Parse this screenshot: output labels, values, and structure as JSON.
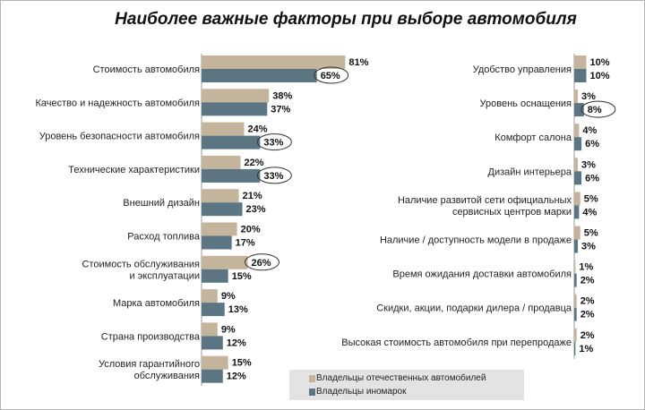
{
  "chart_data": {
    "type": "bar",
    "orientation": "horizontal",
    "title": "Наиболее важные факторы при выборе автомобиля",
    "series_names": [
      "Владельцы отечественных автомобилей",
      "Владельцы иномарок"
    ],
    "colors": {
      "domestic": "#c4b49c",
      "foreign": "#5b7583",
      "highlight_ring": "#333333"
    },
    "unit": "%",
    "panels": [
      {
        "side": "left",
        "categories": [
          "Стоимость автомобиля",
          "Качество и надежность автомобиля",
          "Уровень безопасности автомобиля",
          "Технические характеристики",
          "Внешний дизайн",
          "Расход топлива",
          "Стоимость обслуживания\nи эксплуатации",
          "Марка автомобиля",
          "Страна производства",
          "Условия гарантийного\nобслуживания"
        ],
        "domestic": [
          81,
          38,
          24,
          22,
          21,
          20,
          26,
          9,
          9,
          15
        ],
        "foreign": [
          65,
          37,
          33,
          33,
          23,
          17,
          15,
          13,
          12,
          12
        ],
        "highlighted": [
          {
            "category_index": 0,
            "series": "foreign"
          },
          {
            "category_index": 2,
            "series": "foreign"
          },
          {
            "category_index": 3,
            "series": "foreign"
          },
          {
            "category_index": 6,
            "series": "domestic"
          }
        ]
      },
      {
        "side": "right",
        "categories": [
          "Удобство управления",
          "Уровень оснащения",
          "Комфорт салона",
          "Дизайн интерьера",
          "Наличие развитой сети официальных\nсервисных центров марки",
          "Наличие / доступность модели в продаже",
          "Время ожидания доставки автомобиля",
          "Скидки, акции, подарки дилера / продавца",
          "Высокая стоимость автомобиля при перепродаже"
        ],
        "domestic": [
          10,
          3,
          4,
          3,
          5,
          5,
          1,
          2,
          2
        ],
        "foreign": [
          10,
          8,
          6,
          6,
          4,
          3,
          2,
          2,
          1
        ],
        "highlighted": [
          {
            "category_index": 1,
            "series": "foreign"
          }
        ]
      }
    ]
  }
}
